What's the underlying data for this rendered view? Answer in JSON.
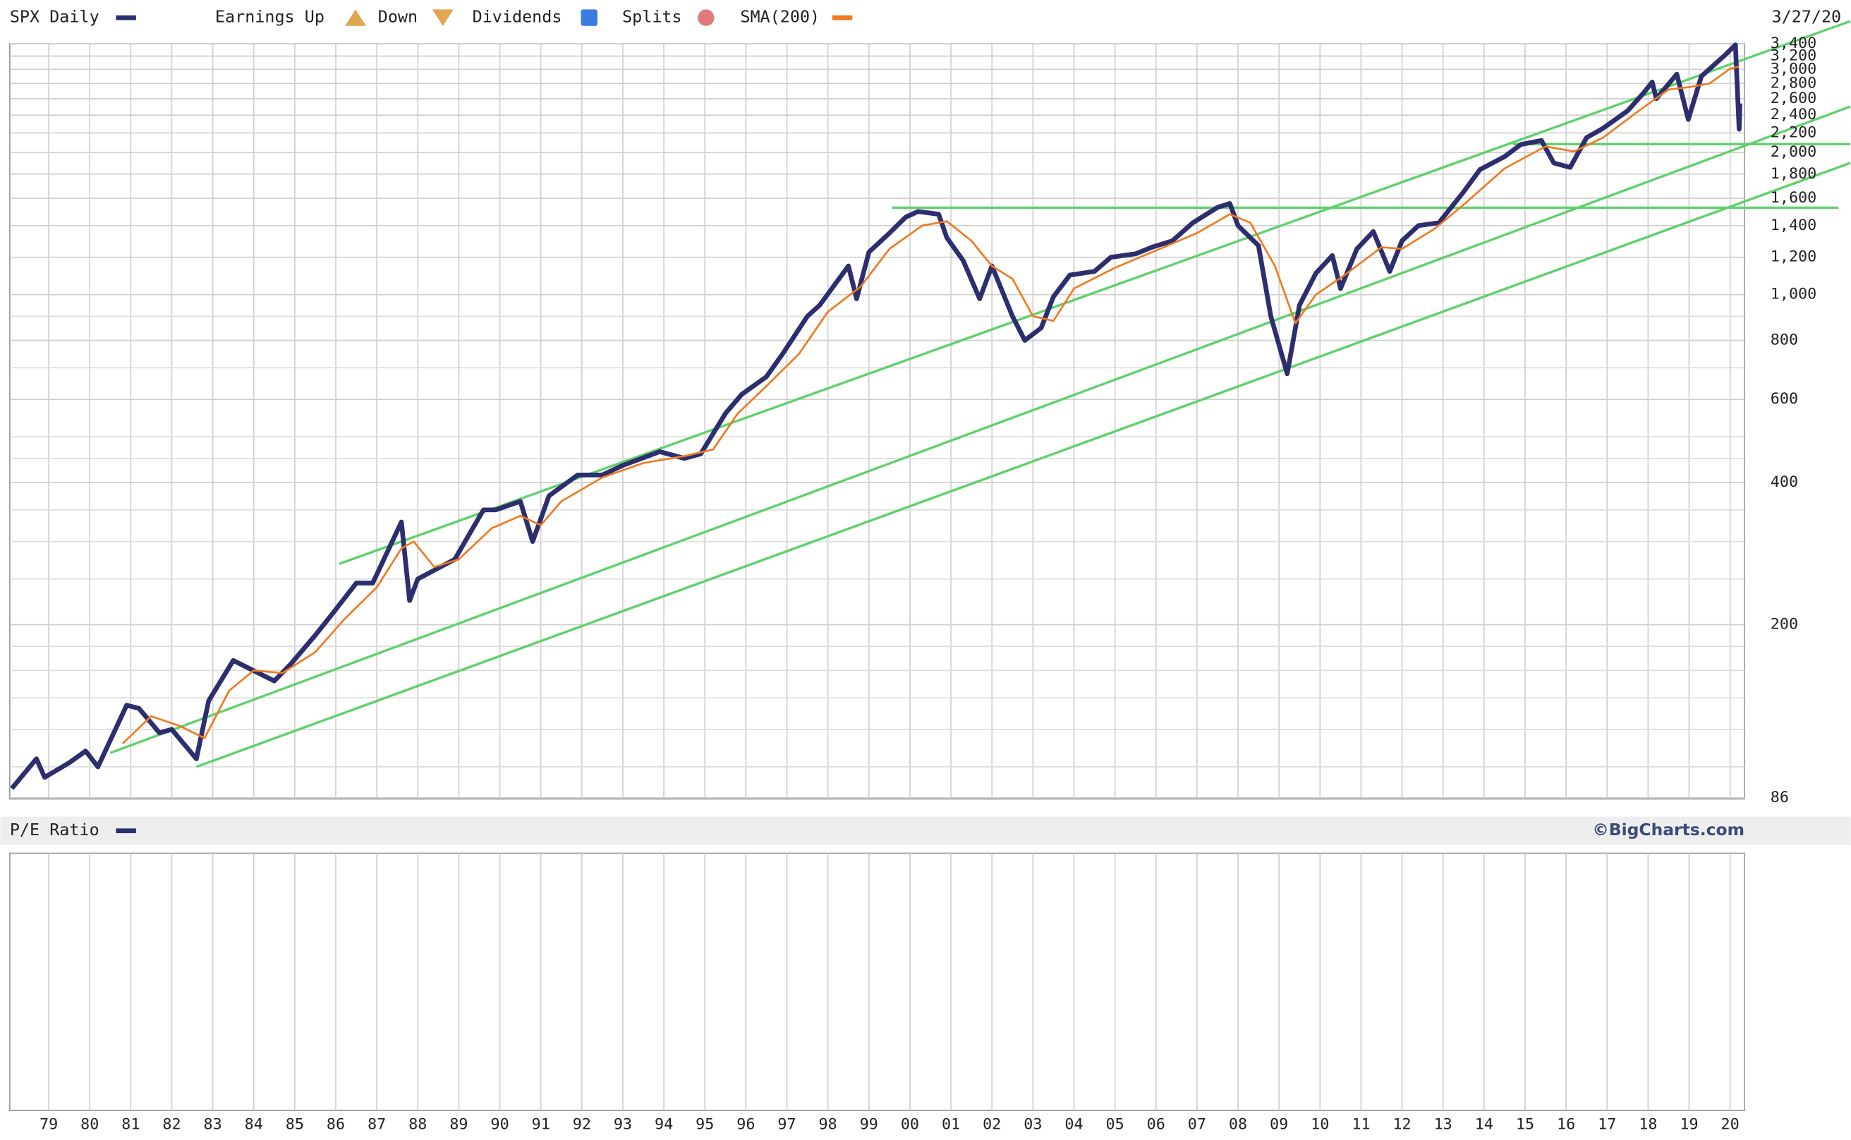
{
  "chart_data": {
    "type": "line",
    "date": "3/27/20",
    "legend_items": [
      "Earnings Up",
      "Down",
      "Dividends",
      "Splits"
    ],
    "yscale": "log",
    "grid": true,
    "xlim": [
      1978.05,
      2020.35
    ],
    "ylim": [
      86,
      3400
    ],
    "xticks": [
      {
        "value": 1979,
        "label": "79"
      },
      {
        "value": 1980,
        "label": "80"
      },
      {
        "value": 1981,
        "label": "81"
      },
      {
        "value": 1982,
        "label": "82"
      },
      {
        "value": 1983,
        "label": "83"
      },
      {
        "value": 1984,
        "label": "84"
      },
      {
        "value": 1985,
        "label": "85"
      },
      {
        "value": 1986,
        "label": "86"
      },
      {
        "value": 1987,
        "label": "87"
      },
      {
        "value": 1988,
        "label": "88"
      },
      {
        "value": 1989,
        "label": "89"
      },
      {
        "value": 1990,
        "label": "90"
      },
      {
        "value": 1991,
        "label": "91"
      },
      {
        "value": 1992,
        "label": "92"
      },
      {
        "value": 1993,
        "label": "93"
      },
      {
        "value": 1994,
        "label": "94"
      },
      {
        "value": 1995,
        "label": "95"
      },
      {
        "value": 1996,
        "label": "96"
      },
      {
        "value": 1997,
        "label": "97"
      },
      {
        "value": 1998,
        "label": "98"
      },
      {
        "value": 1999,
        "label": "99"
      },
      {
        "value": 2000,
        "label": "00"
      },
      {
        "value": 2001,
        "label": "01"
      },
      {
        "value": 2002,
        "label": "02"
      },
      {
        "value": 2003,
        "label": "03"
      },
      {
        "value": 2004,
        "label": "04"
      },
      {
        "value": 2005,
        "label": "05"
      },
      {
        "value": 2006,
        "label": "06"
      },
      {
        "value": 2007,
        "label": "07"
      },
      {
        "value": 2008,
        "label": "08"
      },
      {
        "value": 2009,
        "label": "09"
      },
      {
        "value": 2010,
        "label": "10"
      },
      {
        "value": 2011,
        "label": "11"
      },
      {
        "value": 2012,
        "label": "12"
      },
      {
        "value": 2013,
        "label": "13"
      },
      {
        "value": 2014,
        "label": "14"
      },
      {
        "value": 2015,
        "label": "15"
      },
      {
        "value": 2016,
        "label": "16"
      },
      {
        "value": 2017,
        "label": "17"
      },
      {
        "value": 2018,
        "label": "18"
      },
      {
        "value": 2019,
        "label": "19"
      },
      {
        "value": 2020,
        "label": "20"
      }
    ],
    "yticks": [
      86,
      200,
      400,
      600,
      800,
      {
        "value": 1000,
        "label": "1,000"
      },
      {
        "value": 1200,
        "label": "1,200"
      },
      {
        "value": 1400,
        "label": "1,400"
      },
      {
        "value": 1600,
        "label": "1,600"
      },
      {
        "value": 1800,
        "label": "1,800"
      },
      {
        "value": 2000,
        "label": "2,000"
      },
      {
        "value": 2200,
        "label": "2,200"
      },
      {
        "value": 2400,
        "label": "2,400"
      },
      {
        "value": 2600,
        "label": "2,600"
      },
      {
        "value": 2800,
        "label": "2,800"
      },
      {
        "value": 3000,
        "label": "3,000"
      },
      {
        "value": 3200,
        "label": "3,200"
      },
      {
        "value": 3400,
        "label": "3,400"
      }
    ],
    "ygrid_minor": [
      100,
      120,
      140,
      160,
      180,
      250,
      300,
      350,
      450,
      500,
      700,
      900
    ],
    "series": [
      {
        "name": "SPX Daily",
        "color": "#2c2e6e",
        "x": [
          1978.1,
          1978.7,
          1978.9,
          1979.5,
          1979.9,
          1980.2,
          1980.9,
          1981.2,
          1981.7,
          1982.0,
          1982.6,
          1982.9,
          1983.5,
          1984.5,
          1984.9,
          1985.5,
          1985.9,
          1986.5,
          1986.9,
          1987.6,
          1987.8,
          1988.0,
          1988.9,
          1989.6,
          1989.9,
          1990.5,
          1990.8,
          1991.2,
          1991.9,
          1992.5,
          1993.0,
          1993.9,
          1994.5,
          1994.9,
          1995.5,
          1995.9,
          1996.5,
          1996.9,
          1997.5,
          1997.8,
          1998.5,
          1998.7,
          1999.0,
          1999.5,
          1999.9,
          2000.2,
          2000.7,
          2000.9,
          2001.3,
          2001.7,
          2002.0,
          2002.5,
          2002.8,
          2003.2,
          2003.5,
          2003.9,
          2004.5,
          2004.9,
          2005.5,
          2005.9,
          2006.4,
          2006.9,
          2007.5,
          2007.8,
          2008.0,
          2008.5,
          2008.8,
          2009.2,
          2009.5,
          2009.9,
          2010.3,
          2010.5,
          2010.9,
          2011.3,
          2011.7,
          2012.0,
          2012.4,
          2012.9,
          2013.5,
          2013.9,
          2014.5,
          2014.9,
          2015.4,
          2015.7,
          2016.1,
          2016.5,
          2016.9,
          2017.5,
          2017.9,
          2018.1,
          2018.2,
          2018.7,
          2018.98,
          2019.3,
          2019.9,
          2020.13,
          2020.22,
          2020.24
        ],
        "values": [
          90,
          104,
          95,
          102,
          108,
          100,
          135,
          133,
          118,
          120,
          104,
          138,
          168,
          152,
          165,
          190,
          210,
          245,
          245,
          330,
          225,
          250,
          275,
          350,
          350,
          365,
          300,
          375,
          415,
          415,
          435,
          465,
          450,
          460,
          560,
          615,
          670,
          750,
          900,
          950,
          1150,
          980,
          1230,
          1350,
          1460,
          1500,
          1480,
          1320,
          1180,
          980,
          1150,
          900,
          800,
          850,
          990,
          1100,
          1120,
          1200,
          1220,
          1260,
          1300,
          1420,
          1530,
          1560,
          1400,
          1270,
          900,
          680,
          950,
          1110,
          1210,
          1030,
          1250,
          1360,
          1120,
          1300,
          1400,
          1420,
          1650,
          1840,
          1960,
          2080,
          2120,
          1900,
          1860,
          2150,
          2250,
          2450,
          2680,
          2820,
          2600,
          2930,
          2350,
          2900,
          3230,
          3380,
          2240,
          2540
        ]
      },
      {
        "name": "SMA(200)",
        "color": "#f07a20",
        "x": [
          1980.8,
          1981.5,
          1982.2,
          1982.8,
          1983.4,
          1984.0,
          1984.7,
          1985.5,
          1986.2,
          1987.0,
          1987.6,
          1987.9,
          1988.4,
          1989.0,
          1989.8,
          1990.5,
          1991.0,
          1991.5,
          1992.5,
          1993.5,
          1994.5,
          1995.2,
          1995.8,
          1996.5,
          1997.3,
          1998.0,
          1998.8,
          1999.5,
          2000.3,
          2000.9,
          2001.5,
          2002.0,
          2002.5,
          2003.0,
          2003.5,
          2004.0,
          2005.0,
          2006.0,
          2007.0,
          2007.8,
          2008.3,
          2008.9,
          2009.4,
          2009.9,
          2010.6,
          2011.5,
          2012.0,
          2012.8,
          2013.5,
          2014.5,
          2015.5,
          2016.2,
          2016.9,
          2017.8,
          2018.5,
          2019.0,
          2019.5,
          2020.0,
          2020.22
        ],
        "values": [
          112,
          128,
          122,
          115,
          145,
          160,
          158,
          175,
          205,
          240,
          290,
          300,
          265,
          275,
          320,
          340,
          325,
          365,
          410,
          440,
          455,
          470,
          560,
          640,
          750,
          920,
          1040,
          1250,
          1400,
          1430,
          1300,
          1150,
          1080,
          900,
          880,
          1030,
          1140,
          1240,
          1350,
          1480,
          1420,
          1150,
          870,
          1000,
          1100,
          1260,
          1250,
          1380,
          1550,
          1850,
          2060,
          2010,
          2150,
          2460,
          2720,
          2750,
          2800,
          3010,
          3040
        ]
      }
    ],
    "trend_lines": [
      {
        "color": "#5fd16a",
        "x": [
          1986.08,
          2022.93
        ],
        "values": [
          269,
          3793
        ]
      },
      {
        "color": "#5fd16a",
        "x": [
          1980.5,
          2022.93
        ],
        "values": [
          107,
          2502
        ]
      },
      {
        "color": "#5fd16a",
        "x": [
          1982.6,
          2022.93
        ],
        "values": [
          100,
          1901
        ]
      },
      {
        "color": "#5fd16a",
        "x": [
          1999.57,
          2022.64
        ],
        "values": [
          1528,
          1528
        ]
      },
      {
        "color": "#5fd16a",
        "x": [
          2014.7,
          2022.93
        ],
        "values": [
          2083,
          2083
        ]
      }
    ],
    "lower_panel": {
      "title": "P/E Ratio",
      "color": "#2c2e6e"
    },
    "credit": "©BigCharts.com"
  }
}
